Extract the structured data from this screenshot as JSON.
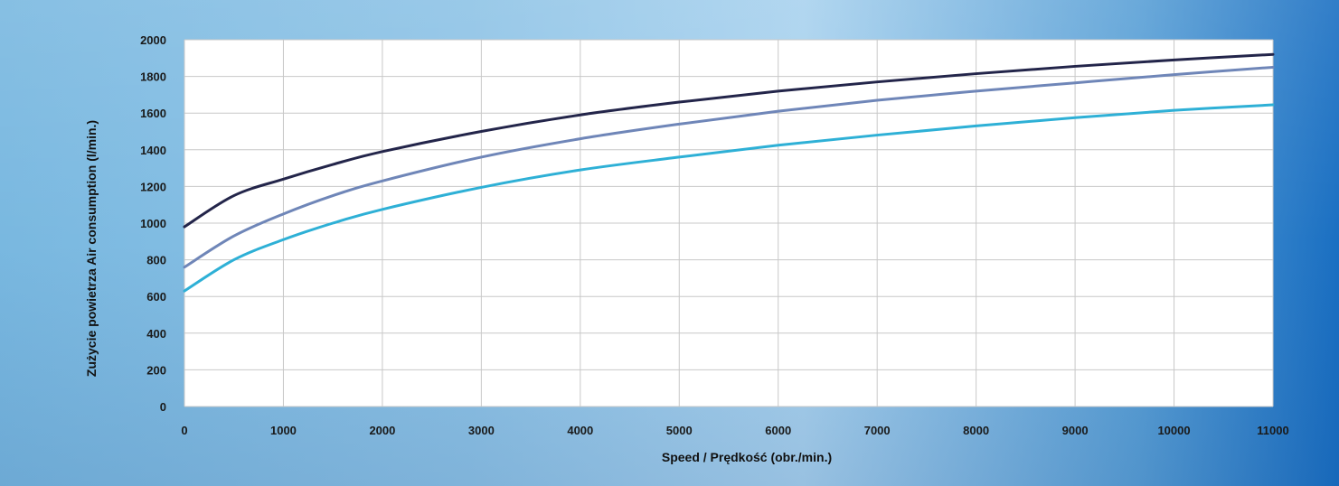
{
  "chart_data": {
    "type": "line",
    "title": "",
    "xlabel": "Speed / Prędkość (obr./min.)",
    "ylabel": "Zużycie powietrza Air consumption (l/min.)",
    "xlim": [
      0,
      11000
    ],
    "ylim": [
      0,
      2000
    ],
    "xticks": [
      0,
      1000,
      2000,
      3000,
      4000,
      5000,
      6000,
      7000,
      8000,
      9000,
      10000,
      11000
    ],
    "yticks": [
      0,
      200,
      400,
      600,
      800,
      1000,
      1200,
      1400,
      1600,
      1800,
      2000
    ],
    "grid": true,
    "legend": "none",
    "x": [
      0,
      500,
      1000,
      1500,
      2000,
      3000,
      4000,
      5000,
      6000,
      7000,
      8000,
      9000,
      10000,
      11000
    ],
    "series": [
      {
        "color": "#23254a",
        "values": [
          980,
          1150,
          1240,
          1320,
          1390,
          1500,
          1590,
          1660,
          1720,
          1770,
          1815,
          1855,
          1890,
          1920
        ]
      },
      {
        "color": "#6f86b8",
        "values": [
          760,
          930,
          1050,
          1150,
          1230,
          1360,
          1460,
          1540,
          1610,
          1670,
          1720,
          1765,
          1810,
          1850
        ]
      },
      {
        "color": "#2eb0d6",
        "values": [
          630,
          800,
          910,
          1000,
          1075,
          1195,
          1290,
          1360,
          1425,
          1480,
          1530,
          1575,
          1615,
          1645
        ]
      }
    ]
  }
}
